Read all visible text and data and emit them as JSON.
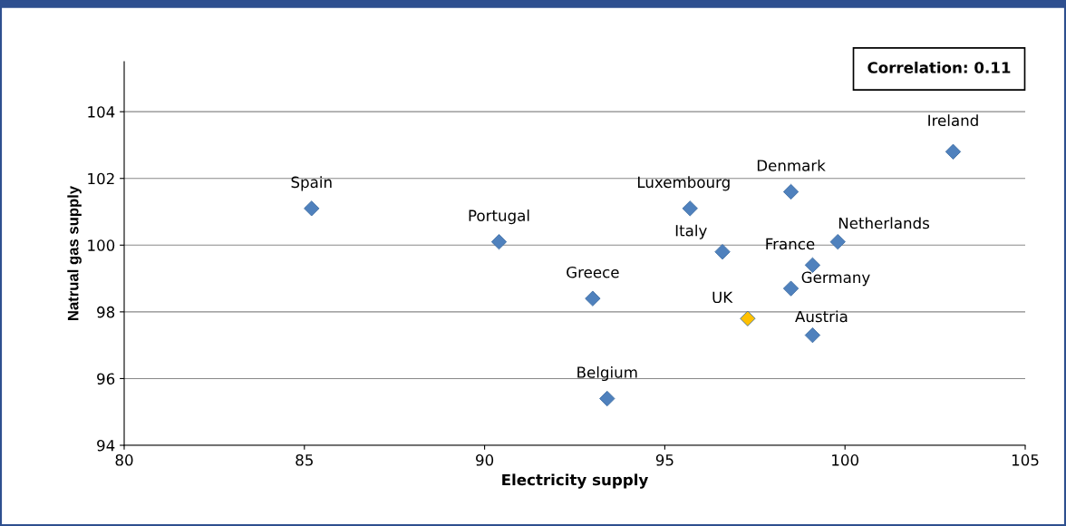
{
  "chart_data": {
    "type": "scatter",
    "xlabel": "Electricity supply",
    "ylabel": "Natrual gas supply",
    "x": [
      85.2,
      90.4,
      93.0,
      93.4,
      95.7,
      96.6,
      97.3,
      98.5,
      98.5,
      99.1,
      99.1,
      99.8,
      103.0
    ],
    "values": [
      101.1,
      100.1,
      98.4,
      95.4,
      101.1,
      99.8,
      97.8,
      101.6,
      98.7,
      99.4,
      97.3,
      100.1,
      102.8
    ],
    "colors": [
      "#4f81bd",
      "#4f81bd",
      "#4f81bd",
      "#4f81bd",
      "#4f81bd",
      "#4f81bd",
      "#ffc000",
      "#4f81bd",
      "#4f81bd",
      "#4f81bd",
      "#4f81bd",
      "#4f81bd",
      "#4f81bd"
    ],
    "marker": "diamond",
    "xlim": [
      80,
      105
    ],
    "xticks": [
      80,
      85,
      90,
      95,
      100,
      105
    ],
    "ylim": [
      94,
      105.5
    ],
    "yticks": [
      94,
      96,
      98,
      100,
      102,
      104
    ],
    "grid": "y",
    "annotations": [
      {
        "text": "Spain",
        "x": 85.2,
        "y": 101.1
      },
      {
        "text": "Portugal",
        "x": 90.4,
        "y": 100.1
      },
      {
        "text": "Greece",
        "x": 93.0,
        "y": 98.4
      },
      {
        "text": "Belgium",
        "x": 93.4,
        "y": 95.4
      },
      {
        "text": "Luxembourg",
        "x": 95.7,
        "y": 101.1
      },
      {
        "text": "Italy",
        "x": 96.6,
        "y": 99.8
      },
      {
        "text": "UK",
        "x": 97.3,
        "y": 97.8
      },
      {
        "text": "Denmark",
        "x": 98.5,
        "y": 101.6
      },
      {
        "text": "Germany",
        "x": 98.5,
        "y": 98.7
      },
      {
        "text": "France",
        "x": 99.1,
        "y": 99.4
      },
      {
        "text": "Austria",
        "x": 99.1,
        "y": 97.3
      },
      {
        "text": "Netherlands",
        "x": 99.8,
        "y": 100.1
      },
      {
        "text": "Ireland",
        "x": 103.0,
        "y": 102.8
      },
      "Correlation: 0.11"
    ]
  }
}
